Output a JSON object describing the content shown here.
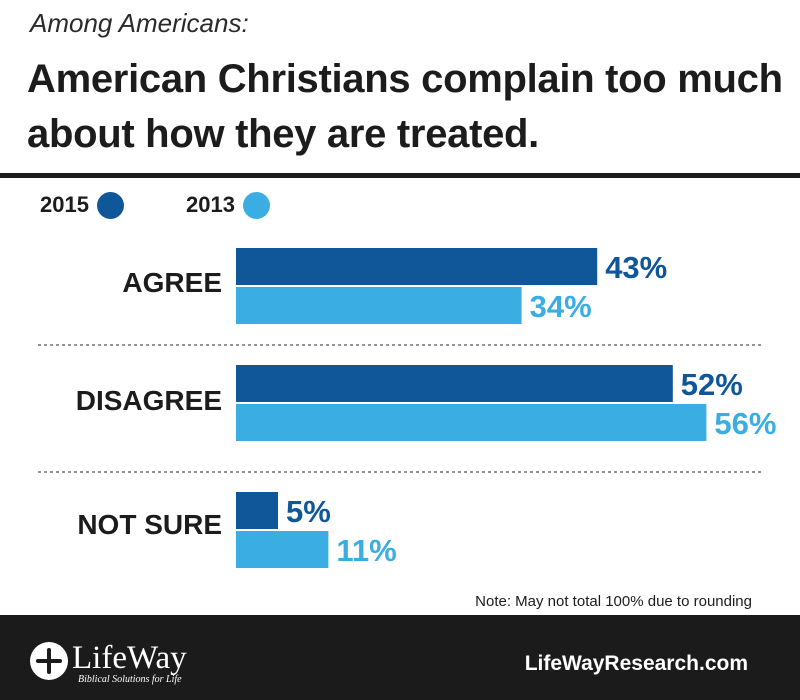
{
  "header": {
    "subtitle": "Among Americans:",
    "title": "American Christians complain too much about how they are treated."
  },
  "legend": [
    {
      "label": "2015",
      "color": "#0f5799"
    },
    {
      "label": "2013",
      "color": "#3aaee3"
    }
  ],
  "chart_data": {
    "type": "bar",
    "orientation": "horizontal",
    "categories": [
      "AGREE",
      "DISAGREE",
      "NOT SURE"
    ],
    "series": [
      {
        "name": "2015",
        "values": [
          43,
          52,
          5
        ],
        "labels": [
          "43%",
          "52%",
          "5%"
        ],
        "color": "#0f5799"
      },
      {
        "name": "2013",
        "values": [
          34,
          56,
          11
        ],
        "labels": [
          "34%",
          "56%",
          "11%"
        ],
        "color": "#3aaee3"
      }
    ],
    "xlim": [
      0,
      100
    ],
    "grid": false,
    "legend_position": "top-left"
  },
  "note": "Note: May not total 100% due to rounding",
  "footer": {
    "logo_name": "LifeWay",
    "logo_tagline": "Biblical Solutions for Life",
    "website": "LifeWayResearch.com"
  }
}
